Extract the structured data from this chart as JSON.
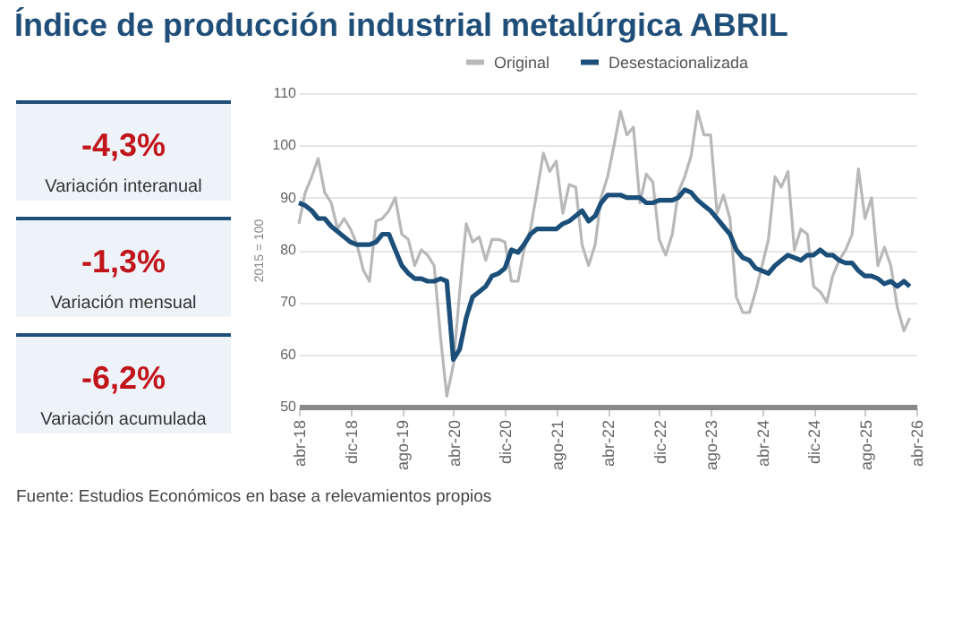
{
  "chart_data": {
    "type": "line",
    "title": "Índice de producción industrial metalúrgica ABRIL",
    "ylabel": "2015 = 100",
    "annotations": [
      "-4,3%",
      "Variación interanual",
      "-1,3%",
      "Variación mensual",
      "-6,2%",
      "Variación acumulada",
      "Fuente: Estudios Económicos en base a relevamientos propios"
    ],
    "x": [
      "2018-04",
      "2018-05",
      "2018-06",
      "2018-07",
      "2018-08",
      "2018-09",
      "2018-10",
      "2018-11",
      "2018-12",
      "2019-01",
      "2019-02",
      "2019-03",
      "2019-04",
      "2019-05",
      "2019-06",
      "2019-07",
      "2019-08",
      "2019-09",
      "2019-10",
      "2019-11",
      "2019-12",
      "2020-01",
      "2020-02",
      "2020-03",
      "2020-04",
      "2020-05",
      "2020-06",
      "2020-07",
      "2020-08",
      "2020-09",
      "2020-10",
      "2020-11",
      "2020-12",
      "2021-01",
      "2021-02",
      "2021-03",
      "2021-04",
      "2021-05",
      "2021-06",
      "2021-07",
      "2021-08",
      "2021-09",
      "2021-10",
      "2021-11",
      "2021-12",
      "2022-01",
      "2022-02",
      "2022-03",
      "2022-04",
      "2022-05",
      "2022-06",
      "2022-07",
      "2022-08",
      "2022-09",
      "2022-10",
      "2022-11",
      "2022-12",
      "2023-01",
      "2023-02",
      "2023-03",
      "2023-04",
      "2023-05",
      "2023-06",
      "2023-07",
      "2023-08",
      "2023-09",
      "2023-10",
      "2023-11",
      "2023-12",
      "2024-01",
      "2024-02",
      "2024-03",
      "2024-04",
      "2024-05",
      "2024-06",
      "2024-07",
      "2024-08",
      "2024-09",
      "2024-10",
      "2024-11",
      "2024-12",
      "2025-01",
      "2025-02",
      "2025-03",
      "2025-04",
      "2025-05",
      "2025-06",
      "2025-07",
      "2025-08",
      "2025-09",
      "2025-10",
      "2025-11",
      "2025-12",
      "2026-01",
      "2026-02",
      "2026-03"
    ],
    "series": [
      {
        "name": "Original",
        "color": "#b8b8b8",
        "values": [
          85,
          91,
          94,
          97.5,
          91,
          89,
          84,
          86,
          84,
          81,
          76,
          74,
          85.5,
          86,
          87.5,
          90,
          83,
          82,
          77,
          80,
          79,
          77,
          63,
          52,
          58,
          72,
          85,
          81.5,
          82.5,
          78,
          82,
          82,
          81.5,
          74,
          74,
          80,
          84,
          91,
          98.5,
          95,
          97,
          87,
          92.5,
          92,
          81,
          77,
          81,
          90,
          94,
          100,
          106.5,
          102,
          103.5,
          89,
          94.5,
          93,
          82,
          79,
          83,
          91,
          94,
          98,
          106.5,
          102,
          102,
          87,
          90.5,
          86,
          71,
          68,
          68,
          72,
          77,
          82,
          94,
          92,
          95,
          80,
          84,
          83,
          73,
          72,
          70,
          75,
          78,
          80,
          83,
          95.5,
          86,
          90,
          77,
          80.5,
          77,
          69,
          64.5,
          67
        ]
      },
      {
        "name": "Desestacionalizada",
        "color": "#1b4f7a",
        "values": [
          89,
          88.5,
          87.5,
          86,
          86,
          84.5,
          83.5,
          82.5,
          81.5,
          81,
          81,
          81,
          81.5,
          83,
          83,
          80,
          77,
          75.5,
          74.5,
          74.5,
          74,
          74,
          74.5,
          74,
          59,
          61,
          67,
          71,
          72,
          73,
          75,
          75.5,
          76.5,
          80,
          79.5,
          81,
          83,
          84,
          84,
          84,
          84,
          85,
          85.5,
          86.5,
          87.5,
          85.5,
          86.5,
          89,
          90.5,
          90.5,
          90.5,
          90,
          90,
          90,
          89,
          89,
          89.5,
          89.5,
          89.5,
          90,
          91.5,
          91,
          89.5,
          88.5,
          87.5,
          86,
          84.5,
          83,
          80,
          78.5,
          78,
          76.5,
          76,
          75.5,
          77,
          78,
          79,
          78.5,
          78,
          79,
          79,
          80,
          79,
          79,
          78,
          77.5,
          77.5,
          76,
          75,
          75,
          74.5,
          73.5,
          74,
          73,
          74,
          73
        ]
      }
    ],
    "xlim": [
      "2018-04",
      "2026-04"
    ],
    "xticks": [
      {
        "value": "2018-04",
        "label": "abr-18"
      },
      {
        "value": "2018-12",
        "label": "dic-18"
      },
      {
        "value": "2019-08",
        "label": "ago-19"
      },
      {
        "value": "2020-04",
        "label": "abr-20"
      },
      {
        "value": "2020-12",
        "label": "dic-20"
      },
      {
        "value": "2021-08",
        "label": "ago-21"
      },
      {
        "value": "2022-04",
        "label": "abr-22"
      },
      {
        "value": "2022-12",
        "label": "dic-22"
      },
      {
        "value": "2023-08",
        "label": "ago-23"
      },
      {
        "value": "2024-04",
        "label": "abr-24"
      },
      {
        "value": "2024-12",
        "label": "dic-24"
      },
      {
        "value": "2025-08",
        "label": "ago-25"
      },
      {
        "value": "2026-04",
        "label": "abr-26"
      }
    ],
    "ylim": [
      50,
      110
    ],
    "yticks": [
      50,
      60,
      70,
      80,
      90,
      100,
      110
    ],
    "grid": "y",
    "legend": "top",
    "marker": "none",
    "line_style": "solid"
  }
}
